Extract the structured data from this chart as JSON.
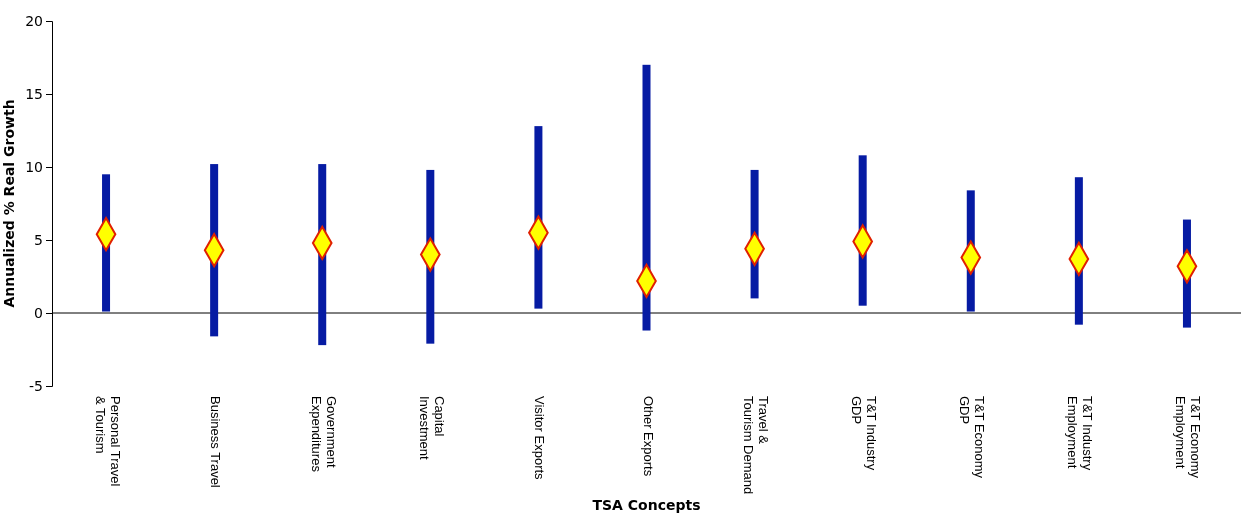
{
  "chart_data": {
    "type": "bar",
    "xlabel": "TSA Concepts",
    "ylabel": "Annualized % Real Growth",
    "categories": [
      "Personal Travel & Tourism",
      "Business Travel",
      "Government Expenditures",
      "Capital Investment",
      "Visitor Exports",
      "Other Exports",
      "Travel & Tourism Demand",
      "T&T Industry GDP",
      "T&T Economy GDP",
      "T&T Industry Employment",
      "T&T Economy Employment"
    ],
    "series": [
      {
        "color": "#061ba3",
        "base": [
          0.1,
          -1.6,
          -2.2,
          -2.1,
          0.3,
          -1.2,
          1.0,
          0.5,
          0.1,
          -0.8,
          -1.0
        ],
        "values": [
          9.4,
          11.8,
          12.4,
          11.9,
          12.5,
          18.2,
          8.8,
          10.3,
          8.3,
          10.1,
          7.4
        ]
      },
      {
        "type": "scatter",
        "color": "#ffff00",
        "marker": "diamond",
        "x": [
          "Personal Travel & Tourism",
          "Business Travel",
          "Government Expenditures",
          "Capital Investment",
          "Visitor Exports",
          "Other Exports",
          "Travel & Tourism Demand",
          "T&T Industry GDP",
          "T&T Economy GDP",
          "T&T Industry Employment",
          "T&T Economy Employment"
        ],
        "values": [
          5.4,
          4.3,
          4.8,
          4.0,
          5.5,
          2.2,
          4.4,
          4.9,
          3.8,
          3.7,
          3.2
        ]
      }
    ],
    "ylim": [
      -5,
      20
    ],
    "yticks": [
      -5,
      0,
      5,
      10,
      15,
      20
    ],
    "ref_lines": [
      {
        "axis": "y",
        "value": 0,
        "color": "#000000"
      }
    ]
  }
}
